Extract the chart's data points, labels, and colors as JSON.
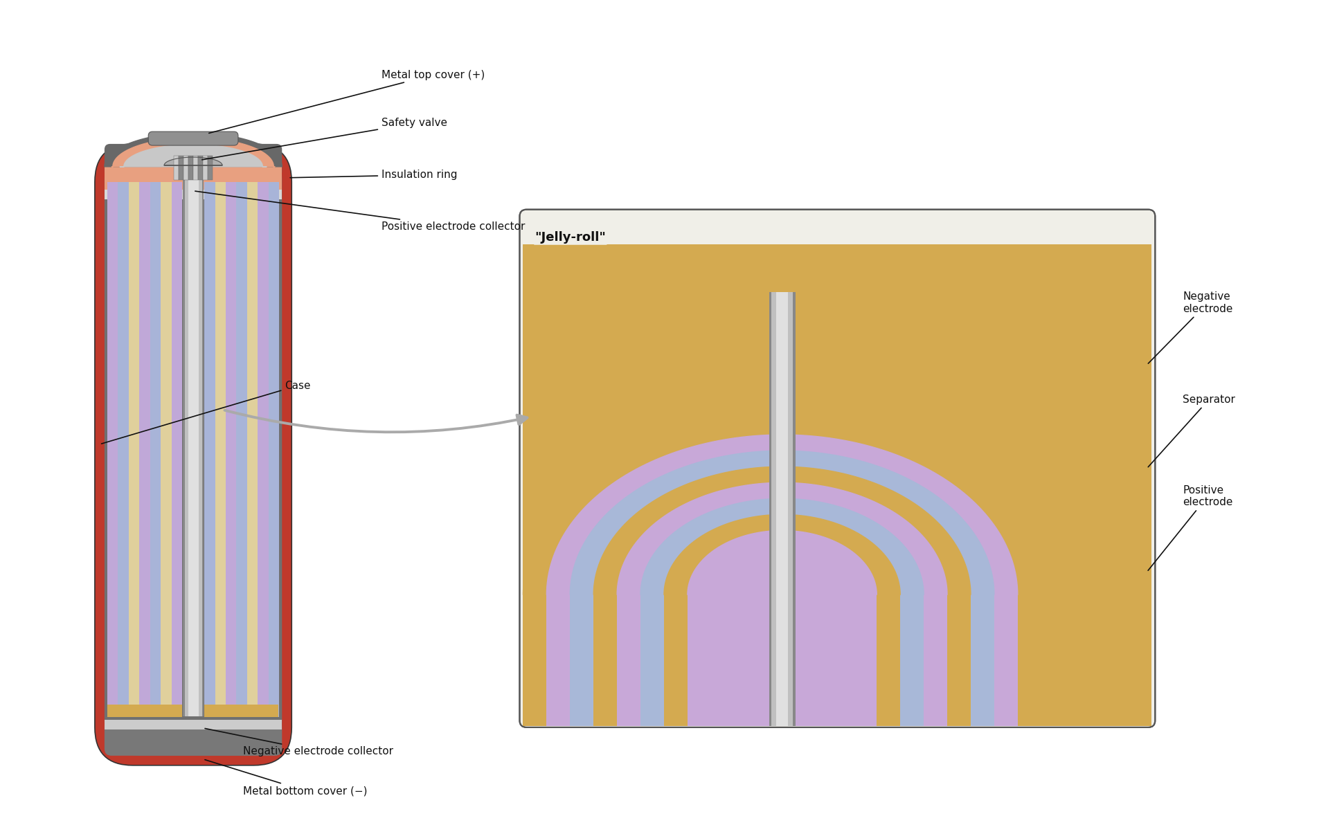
{
  "bg_color": "#ffffff",
  "battery": {
    "case_color": "#c0392b",
    "inner_gray": "#707070",
    "insulation_color": "#e8a080",
    "jelly_colors": [
      "#c0a8d8",
      "#a8b4d8",
      "#e0d09c"
    ],
    "center_rod_light": "#e0e0e0",
    "center_rod_dark": "#888888",
    "safety_valve_color": "#b0b0b0",
    "top_cover_color": "#909090",
    "bottom_cap_color": "#787878",
    "top_cap_color": "#686868"
  },
  "jelly_roll": {
    "layer_colors": [
      "#d4aa50",
      "#c8a8d8",
      "#a8b8d8"
    ],
    "outer_yellow": "#d4aa50",
    "rod_light": "#e0e0e0",
    "rod_dark": "#888888"
  },
  "labels": {
    "metal_top_cover": "Metal top cover (+)",
    "safety_valve": "Safety valve",
    "insulation_ring": "Insulation ring",
    "positive_electrode_collector": "Positive electrode collector",
    "case": "Case",
    "negative_electrode_collector": "Negative electrode collector",
    "metal_bottom_cover": "Metal bottom cover (−)",
    "jelly_roll_title": "\"Jelly-roll\"",
    "negative_electrode": "Negative\nelectrode",
    "separator": "Separator",
    "positive_electrode": "Positive\nelectrode"
  },
  "font_size": 11,
  "label_color": "#111111"
}
